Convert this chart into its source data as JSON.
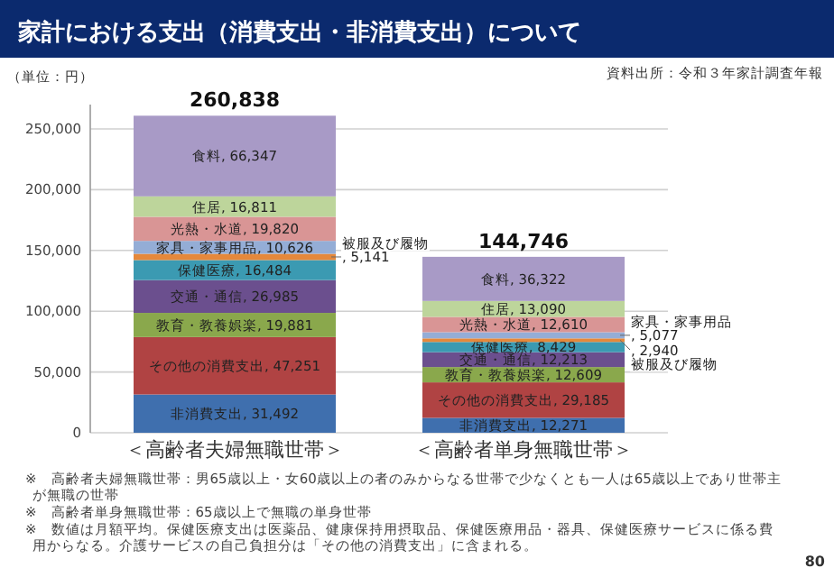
{
  "chart_data": {
    "type": "bar",
    "stacked": true,
    "title": "家計における支出（消費支出・非消費支出）について",
    "subtitle": "資料出所：令和３年家計調査年報",
    "ylabel": "（単位：円）",
    "categories": [
      "＜高齢者夫婦無職世帯＞",
      "＜高齢者単身無職世帯＞"
    ],
    "series": [
      {
        "name": "非消費支出",
        "color": "#3f6fae",
        "values": [
          31492,
          12271
        ],
        "value_labels": [
          ", 31,492",
          ", 12,271"
        ]
      },
      {
        "name": "その他の消費支出",
        "color": "#b04343",
        "values": [
          47251,
          29185
        ],
        "value_labels": [
          ", 47,251",
          ", 29,185"
        ]
      },
      {
        "name": "教育・教養娯楽",
        "color": "#8aa84c",
        "values": [
          19881,
          12609
        ],
        "value_labels": [
          ", 19,881",
          ", 12,609"
        ]
      },
      {
        "name": "交通・通信",
        "color": "#6b4f8e",
        "values": [
          26985,
          12213
        ],
        "value_labels": [
          ", 26,985",
          ", 12,213"
        ]
      },
      {
        "name": "保健医療",
        "color": "#3b9ab2",
        "values": [
          16484,
          8429
        ],
        "value_labels": [
          ", 16,484",
          ", 8,429"
        ]
      },
      {
        "name": "被服及び履物",
        "color": "#e5883b",
        "values": [
          5141,
          2940
        ],
        "value_labels": [
          ", 5,141",
          ", 2,940"
        ]
      },
      {
        "name": "家具・家事用品",
        "color": "#94add6",
        "values": [
          10626,
          5077
        ],
        "value_labels": [
          ", 10,626",
          ", 5,077"
        ]
      },
      {
        "name": "光熱・水道",
        "color": "#d99595",
        "values": [
          19820,
          12610
        ],
        "value_labels": [
          ", 19,820",
          ", 12,610"
        ]
      },
      {
        "name": "住居",
        "color": "#bdd59b",
        "values": [
          16811,
          13090
        ],
        "value_labels": [
          ", 16,811",
          ", 13,090"
        ]
      },
      {
        "name": "食料",
        "color": "#a89ac6",
        "values": [
          66347,
          36322
        ],
        "value_labels": [
          ", 66,347",
          ", 36,322"
        ]
      }
    ],
    "totals": [
      "260,838",
      "144,746"
    ],
    "ylim": [
      0,
      270000
    ],
    "yticks": [
      {
        "value": 0,
        "label": "0"
      },
      {
        "value": 50000,
        "label": "50,000"
      },
      {
        "value": 100000,
        "label": "100,000"
      },
      {
        "value": 150000,
        "label": "150,000"
      },
      {
        "value": 200000,
        "label": "200,000"
      },
      {
        "value": 250000,
        "label": "250,000"
      }
    ],
    "grid": "y",
    "legend": false,
    "annotations": [
      "※　高齢者夫婦無職世帯：男65歳以上・女60歳以上の者のみからなる世帯で少なくとも一人は65歳以上であり世帯主が無職の世帯",
      "※　高齢者単身無職世帯：65歳以上で無職の単身世帯",
      "※　数値は月額平均。保健医療支出は医薬品、健康保持用摂取品、保健医療用品・器具、保健医療サービスに係る費用からなる。介護サービスの自己負担分は「その他の消費支出」に含まれる。",
      "80"
    ]
  }
}
